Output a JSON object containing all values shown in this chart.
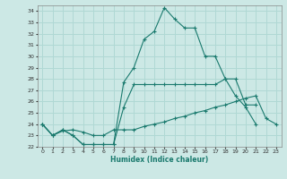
{
  "xlabel": "Humidex (Indice chaleur)",
  "xlim": [
    -0.5,
    23.5
  ],
  "ylim": [
    22,
    34.5
  ],
  "yticks": [
    22,
    23,
    24,
    25,
    26,
    27,
    28,
    29,
    30,
    31,
    32,
    33,
    34
  ],
  "xticks": [
    0,
    1,
    2,
    3,
    4,
    5,
    6,
    7,
    8,
    9,
    10,
    11,
    12,
    13,
    14,
    15,
    16,
    17,
    18,
    19,
    20,
    21,
    22,
    23
  ],
  "background_color": "#cce8e5",
  "grid_color": "#b0d8d4",
  "line_color": "#1a7a6e",
  "lines": [
    {
      "x": [
        0,
        1,
        2,
        3,
        4,
        5,
        6,
        7,
        8,
        9,
        10,
        11,
        12,
        13,
        14,
        15,
        16,
        17,
        18,
        19,
        20,
        21
      ],
      "y": [
        24,
        23,
        23.5,
        23,
        22.2,
        22.2,
        22.2,
        22.2,
        27.7,
        29.0,
        31.5,
        32.2,
        34.3,
        33.3,
        32.5,
        32.5,
        30.0,
        30.0,
        28.0,
        26.5,
        25.5,
        24.0
      ]
    },
    {
      "x": [
        0,
        1,
        2,
        3,
        4,
        5,
        6,
        7,
        8,
        9,
        10,
        11,
        12,
        13,
        14,
        15,
        16,
        17,
        18,
        19,
        20,
        21
      ],
      "y": [
        24,
        23,
        23.5,
        23,
        22.2,
        22.2,
        22.2,
        22.2,
        25.5,
        27.5,
        27.5,
        27.5,
        27.5,
        27.5,
        27.5,
        27.5,
        27.5,
        27.5,
        28.0,
        28.0,
        25.7,
        25.7
      ]
    },
    {
      "x": [
        0,
        1,
        2,
        3,
        4,
        5,
        6,
        7,
        8,
        9,
        10,
        11,
        12,
        13,
        14,
        15,
        16,
        17,
        18,
        19,
        20,
        21,
        22,
        23
      ],
      "y": [
        24,
        23,
        23.4,
        23.5,
        23.3,
        23.0,
        23.0,
        23.5,
        23.5,
        23.5,
        23.8,
        24.0,
        24.2,
        24.5,
        24.7,
        25.0,
        25.2,
        25.5,
        25.7,
        26.0,
        26.3,
        26.5,
        24.5,
        24.0
      ]
    }
  ]
}
